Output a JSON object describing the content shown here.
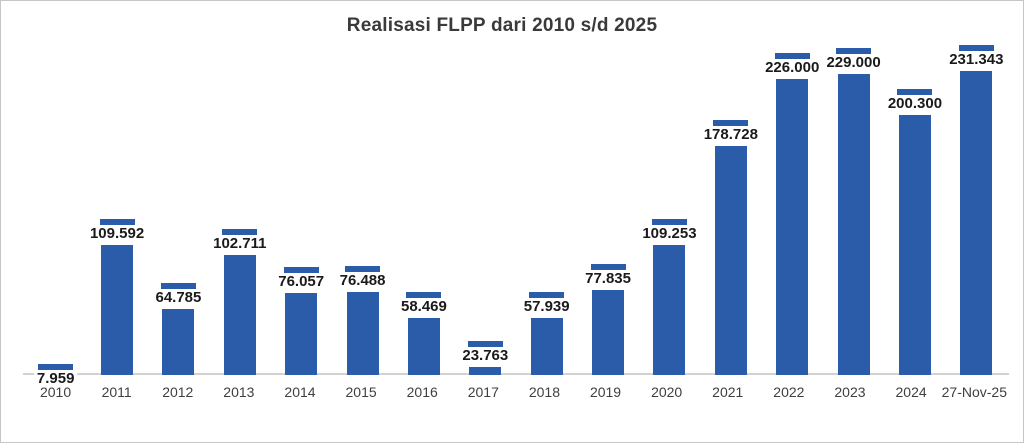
{
  "title": "Realisasi FLPP dari 2010 s/d 2025",
  "colors": {
    "bar": "#2b5ca9",
    "axis_line": "#d2d2d2",
    "value_label": "#1a1a1a",
    "tick_label": "#3f3f3f",
    "title": "#3a3a3a",
    "border": "#c6c6c6",
    "background": "#ffffff"
  },
  "chart_data": {
    "type": "bar",
    "title": "Realisasi FLPP dari 2010 s/d 2025",
    "categories": [
      "2010",
      "2011",
      "2012",
      "2013",
      "2014",
      "2015",
      "2016",
      "2017",
      "2018",
      "2019",
      "2020",
      "2021",
      "2022",
      "2023",
      "2024",
      "27-Nov-25"
    ],
    "values": [
      7959,
      109592,
      64785,
      102711,
      76057,
      76488,
      58469,
      23763,
      57939,
      77835,
      109253,
      178728,
      226000,
      229000,
      200300,
      231343
    ],
    "value_labels": [
      "7.959",
      "109.592",
      "64.785",
      "102.711",
      "76.057",
      "76.488",
      "58.469",
      "23.763",
      "57.939",
      "77.835",
      "109.253",
      "178.728",
      "226.000",
      "229.000",
      "200.300",
      "231.343"
    ],
    "xlabel": "",
    "ylabel": "",
    "ylim": [
      0,
      231343
    ],
    "grid": false,
    "legend": false,
    "y_axis_visible": false,
    "bar_style": "column with top cap dash and inside-end white-backed data label"
  }
}
